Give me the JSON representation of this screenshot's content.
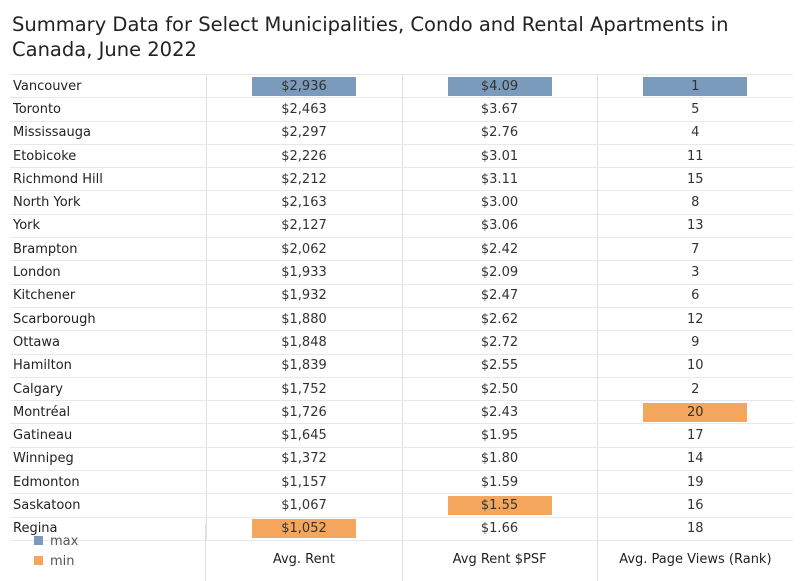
{
  "title": "Summary Data for Select Municipalities, Condo and Rental Apartments in Canada, June 2022",
  "columns": [
    "Avg. Rent",
    "Avg Rent $PSF",
    "Avg. Page Views (Rank)"
  ],
  "legend": {
    "max_label": "max",
    "min_label": "min",
    "max_color": "#7b9bbd",
    "min_color": "#f4a65c"
  },
  "chart_data": {
    "type": "table",
    "title": "Summary Data for Select Municipalities, Condo and Rental Apartments in Canada, June 2022",
    "columns": [
      "Avg. Rent",
      "Avg Rent $PSF",
      "Avg. Page Views (Rank)"
    ],
    "rows": [
      {
        "city": "Vancouver",
        "rent": "$2,936",
        "psf": "$4.09",
        "rank": "1"
      },
      {
        "city": "Toronto",
        "rent": "$2,463",
        "psf": "$3.67",
        "rank": "5"
      },
      {
        "city": "Mississauga",
        "rent": "$2,297",
        "psf": "$2.76",
        "rank": "4"
      },
      {
        "city": "Etobicoke",
        "rent": "$2,226",
        "psf": "$3.01",
        "rank": "11"
      },
      {
        "city": "Richmond Hill",
        "rent": "$2,212",
        "psf": "$3.11",
        "rank": "15"
      },
      {
        "city": "North York",
        "rent": "$2,163",
        "psf": "$3.00",
        "rank": "8"
      },
      {
        "city": "York",
        "rent": "$2,127",
        "psf": "$3.06",
        "rank": "13"
      },
      {
        "city": "Brampton",
        "rent": "$2,062",
        "psf": "$2.42",
        "rank": "7"
      },
      {
        "city": "London",
        "rent": "$1,933",
        "psf": "$2.09",
        "rank": "3"
      },
      {
        "city": "Kitchener",
        "rent": "$1,932",
        "psf": "$2.47",
        "rank": "6"
      },
      {
        "city": "Scarborough",
        "rent": "$1,880",
        "psf": "$2.62",
        "rank": "12"
      },
      {
        "city": "Ottawa",
        "rent": "$1,848",
        "psf": "$2.72",
        "rank": "9"
      },
      {
        "city": "Hamilton",
        "rent": "$1,839",
        "psf": "$2.55",
        "rank": "10"
      },
      {
        "city": "Calgary",
        "rent": "$1,752",
        "psf": "$2.50",
        "rank": "2"
      },
      {
        "city": "Montréal",
        "rent": "$1,726",
        "psf": "$2.43",
        "rank": "20"
      },
      {
        "city": "Gatineau",
        "rent": "$1,645",
        "psf": "$1.95",
        "rank": "17"
      },
      {
        "city": "Winnipeg",
        "rent": "$1,372",
        "psf": "$1.80",
        "rank": "14"
      },
      {
        "city": "Edmonton",
        "rent": "$1,157",
        "psf": "$1.59",
        "rank": "19"
      },
      {
        "city": "Saskatoon",
        "rent": "$1,067",
        "psf": "$1.55",
        "rank": "16"
      },
      {
        "city": "Regina",
        "rent": "$1,052",
        "psf": "$1.66",
        "rank": "18"
      }
    ],
    "highlights": {
      "max": [
        {
          "row": "Vancouver",
          "column": "Avg. Rent"
        },
        {
          "row": "Vancouver",
          "column": "Avg Rent $PSF"
        },
        {
          "row": "Vancouver",
          "column": "Avg. Page Views (Rank)"
        }
      ],
      "min": [
        {
          "row": "Regina",
          "column": "Avg. Rent"
        },
        {
          "row": "Saskatoon",
          "column": "Avg Rent $PSF"
        },
        {
          "row": "Montréal",
          "column": "Avg. Page Views (Rank)"
        }
      ]
    },
    "legend": [
      "max",
      "min"
    ],
    "legend_position": "bottom-left"
  }
}
